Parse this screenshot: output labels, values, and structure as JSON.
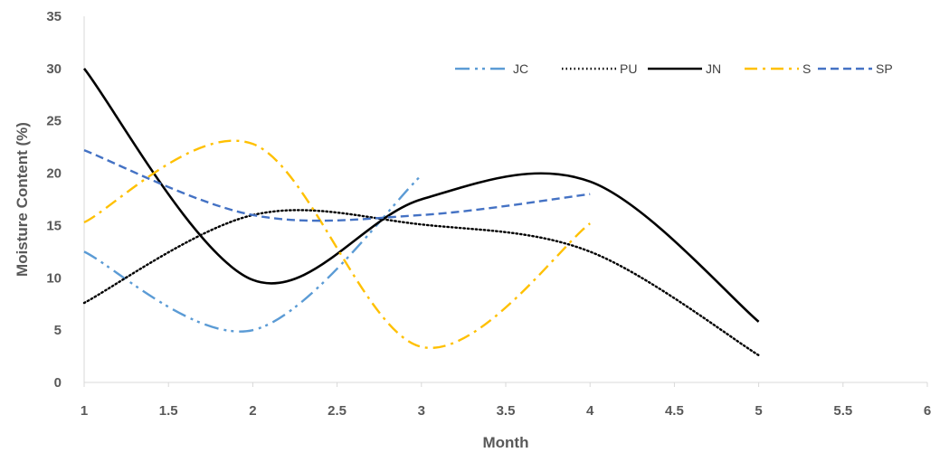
{
  "chart_data": {
    "type": "line",
    "title": "",
    "xlabel": "Month",
    "ylabel": "Moisture Content (%)",
    "xlim": [
      1,
      6
    ],
    "ylim": [
      0,
      35
    ],
    "x_ticks": [
      "1",
      "1.5",
      "2",
      "2.5",
      "3",
      "3.5",
      "4",
      "4.5",
      "5",
      "5.5",
      "6"
    ],
    "y_ticks": [
      "0",
      "5",
      "10",
      "15",
      "20",
      "25",
      "30",
      "35"
    ],
    "grid": false,
    "legend_position": "top-right",
    "smoothed": true,
    "series": [
      {
        "name": "JC",
        "x": [
          1,
          2,
          3
        ],
        "y": [
          12.5,
          5.0,
          19.8
        ],
        "color": "#5b9bd5",
        "dash": "dash-dot-dot"
      },
      {
        "name": "PU",
        "x": [
          1,
          2,
          3,
          4,
          5
        ],
        "y": [
          7.6,
          16.0,
          15.1,
          12.5,
          2.6
        ],
        "color": "#000000",
        "dash": "dotted"
      },
      {
        "name": "JN",
        "x": [
          1,
          2,
          3,
          4,
          5
        ],
        "y": [
          30.0,
          9.8,
          17.5,
          19.2,
          5.8
        ],
        "color": "#000000",
        "dash": "solid"
      },
      {
        "name": "S",
        "x": [
          1,
          2,
          3,
          4
        ],
        "y": [
          15.3,
          22.8,
          3.4,
          15.2
        ],
        "color": "#ffc000",
        "dash": "dash-dot"
      },
      {
        "name": "SP",
        "x": [
          1,
          2,
          3,
          4
        ],
        "y": [
          22.2,
          16.0,
          16.0,
          18.0
        ],
        "color": "#4472c4",
        "dash": "dashed"
      }
    ]
  }
}
